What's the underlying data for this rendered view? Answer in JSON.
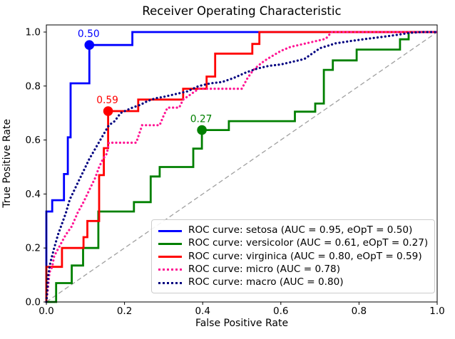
{
  "title": "Receiver Operating Characteristic",
  "chart_data": {
    "type": "line",
    "subtype": "roc-step-curves",
    "title": "Receiver Operating Characteristic",
    "xlabel": "False Positive Rate",
    "ylabel": "True Positive Rate",
    "xlim": [
      0.0,
      1.0
    ],
    "ylim": [
      0.0,
      1.03
    ],
    "grid": false,
    "legend_position": "lower right",
    "xticks": [
      0.0,
      0.2,
      0.4,
      0.6,
      0.8,
      1.0
    ],
    "xtick_labels": [
      "0.0",
      "0.2",
      "0.4",
      "0.6",
      "0.8",
      "1.0"
    ],
    "yticks": [
      0.0,
      0.2,
      0.4,
      0.6,
      0.8,
      1.0
    ],
    "ytick_labels": [
      "0.0",
      "0.2",
      "0.4",
      "0.6",
      "0.8",
      "1.0"
    ],
    "diagonal": {
      "name": "chance-line",
      "color": "#a0a0a0",
      "style": "dashed",
      "points": [
        [
          0,
          0
        ],
        [
          1,
          1
        ]
      ]
    },
    "series": [
      {
        "name": "ROC curve: setosa (AUC = 0.95, eOpT = 0.50)",
        "class": "setosa",
        "auc": 0.95,
        "eopt": 0.5,
        "color": "#0000ff",
        "style": "solid",
        "points": [
          [
            0,
            0
          ],
          [
            0,
            0.335
          ],
          [
            0.015,
            0.335
          ],
          [
            0.015,
            0.377
          ],
          [
            0.045,
            0.377
          ],
          [
            0.045,
            0.474
          ],
          [
            0.055,
            0.474
          ],
          [
            0.055,
            0.61
          ],
          [
            0.062,
            0.61
          ],
          [
            0.062,
            0.81
          ],
          [
            0.11,
            0.81
          ],
          [
            0.11,
            0.952
          ],
          [
            0.22,
            0.952
          ],
          [
            0.22,
            1.0
          ],
          [
            1,
            1.0
          ]
        ]
      },
      {
        "name": "ROC curve: versicolor (AUC = 0.61, eOpT = 0.27)",
        "class": "versicolor",
        "auc": 0.61,
        "eopt": 0.27,
        "color": "#008000",
        "style": "solid",
        "points": [
          [
            0,
            0
          ],
          [
            0.025,
            0
          ],
          [
            0.025,
            0.07
          ],
          [
            0.065,
            0.07
          ],
          [
            0.065,
            0.135
          ],
          [
            0.094,
            0.135
          ],
          [
            0.094,
            0.2
          ],
          [
            0.133,
            0.2
          ],
          [
            0.133,
            0.335
          ],
          [
            0.224,
            0.335
          ],
          [
            0.224,
            0.37
          ],
          [
            0.267,
            0.37
          ],
          [
            0.267,
            0.465
          ],
          [
            0.29,
            0.465
          ],
          [
            0.29,
            0.5
          ],
          [
            0.376,
            0.5
          ],
          [
            0.376,
            0.568
          ],
          [
            0.398,
            0.568
          ],
          [
            0.398,
            0.637
          ],
          [
            0.467,
            0.637
          ],
          [
            0.467,
            0.67
          ],
          [
            0.636,
            0.67
          ],
          [
            0.636,
            0.705
          ],
          [
            0.688,
            0.705
          ],
          [
            0.688,
            0.735
          ],
          [
            0.71,
            0.735
          ],
          [
            0.71,
            0.86
          ],
          [
            0.733,
            0.86
          ],
          [
            0.733,
            0.895
          ],
          [
            0.794,
            0.895
          ],
          [
            0.794,
            0.935
          ],
          [
            0.905,
            0.935
          ],
          [
            0.905,
            0.973
          ],
          [
            0.927,
            0.973
          ],
          [
            0.927,
            1.0
          ],
          [
            1,
            1.0
          ]
        ]
      },
      {
        "name": "ROC curve: virginica (AUC = 0.80, eOpT = 0.59)",
        "class": "virginica",
        "auc": 0.8,
        "eopt": 0.59,
        "color": "#ff0000",
        "style": "solid",
        "points": [
          [
            0,
            0
          ],
          [
            0,
            0.13
          ],
          [
            0.04,
            0.13
          ],
          [
            0.04,
            0.2
          ],
          [
            0.095,
            0.2
          ],
          [
            0.095,
            0.24
          ],
          [
            0.105,
            0.24
          ],
          [
            0.105,
            0.3
          ],
          [
            0.135,
            0.3
          ],
          [
            0.135,
            0.47
          ],
          [
            0.147,
            0.47
          ],
          [
            0.147,
            0.57
          ],
          [
            0.158,
            0.57
          ],
          [
            0.158,
            0.707
          ],
          [
            0.235,
            0.707
          ],
          [
            0.235,
            0.75
          ],
          [
            0.35,
            0.75
          ],
          [
            0.35,
            0.79
          ],
          [
            0.41,
            0.79
          ],
          [
            0.41,
            0.835
          ],
          [
            0.432,
            0.835
          ],
          [
            0.432,
            0.92
          ],
          [
            0.527,
            0.92
          ],
          [
            0.527,
            0.956
          ],
          [
            0.545,
            0.956
          ],
          [
            0.545,
            1.0
          ],
          [
            1,
            1.0
          ]
        ]
      },
      {
        "name": "ROC curve: micro (AUC = 0.78)",
        "class": "micro",
        "auc": 0.78,
        "color": "#ff1493",
        "style": "dotted",
        "points": [
          [
            0,
            0
          ],
          [
            0.004,
            0.05
          ],
          [
            0.008,
            0.11
          ],
          [
            0.015,
            0.13
          ],
          [
            0.02,
            0.17
          ],
          [
            0.035,
            0.21
          ],
          [
            0.05,
            0.25
          ],
          [
            0.065,
            0.28
          ],
          [
            0.08,
            0.33
          ],
          [
            0.095,
            0.37
          ],
          [
            0.105,
            0.4
          ],
          [
            0.115,
            0.43
          ],
          [
            0.125,
            0.46
          ],
          [
            0.135,
            0.5
          ],
          [
            0.145,
            0.53
          ],
          [
            0.155,
            0.55
          ],
          [
            0.16,
            0.59
          ],
          [
            0.23,
            0.59
          ],
          [
            0.245,
            0.655
          ],
          [
            0.29,
            0.655
          ],
          [
            0.3,
            0.69
          ],
          [
            0.31,
            0.72
          ],
          [
            0.34,
            0.72
          ],
          [
            0.35,
            0.75
          ],
          [
            0.37,
            0.77
          ],
          [
            0.39,
            0.79
          ],
          [
            0.5,
            0.79
          ],
          [
            0.515,
            0.83
          ],
          [
            0.53,
            0.86
          ],
          [
            0.55,
            0.885
          ],
          [
            0.565,
            0.9
          ],
          [
            0.6,
            0.93
          ],
          [
            0.625,
            0.945
          ],
          [
            0.655,
            0.955
          ],
          [
            0.685,
            0.965
          ],
          [
            0.715,
            0.975
          ],
          [
            0.73,
            1.0
          ],
          [
            1,
            1.0
          ]
        ]
      },
      {
        "name": "ROC curve: macro (AUC = 0.80)",
        "class": "macro",
        "auc": 0.8,
        "color": "#000080",
        "style": "dotted",
        "points": [
          [
            0,
            0
          ],
          [
            0.005,
            0.1
          ],
          [
            0.01,
            0.145
          ],
          [
            0.02,
            0.2
          ],
          [
            0.03,
            0.25
          ],
          [
            0.04,
            0.29
          ],
          [
            0.05,
            0.33
          ],
          [
            0.06,
            0.38
          ],
          [
            0.07,
            0.41
          ],
          [
            0.08,
            0.44
          ],
          [
            0.09,
            0.47
          ],
          [
            0.1,
            0.5
          ],
          [
            0.11,
            0.53
          ],
          [
            0.12,
            0.555
          ],
          [
            0.13,
            0.58
          ],
          [
            0.14,
            0.605
          ],
          [
            0.15,
            0.63
          ],
          [
            0.16,
            0.655
          ],
          [
            0.175,
            0.67
          ],
          [
            0.19,
            0.7
          ],
          [
            0.205,
            0.71
          ],
          [
            0.22,
            0.72
          ],
          [
            0.24,
            0.73
          ],
          [
            0.26,
            0.745
          ],
          [
            0.28,
            0.755
          ],
          [
            0.3,
            0.76
          ],
          [
            0.33,
            0.77
          ],
          [
            0.36,
            0.78
          ],
          [
            0.39,
            0.8
          ],
          [
            0.42,
            0.81
          ],
          [
            0.45,
            0.815
          ],
          [
            0.48,
            0.83
          ],
          [
            0.51,
            0.85
          ],
          [
            0.54,
            0.865
          ],
          [
            0.57,
            0.875
          ],
          [
            0.6,
            0.88
          ],
          [
            0.63,
            0.89
          ],
          [
            0.66,
            0.9
          ],
          [
            0.7,
            0.94
          ],
          [
            0.74,
            0.958
          ],
          [
            0.78,
            0.967
          ],
          [
            0.82,
            0.975
          ],
          [
            0.86,
            0.982
          ],
          [
            0.9,
            0.99
          ],
          [
            0.93,
            0.997
          ],
          [
            0.96,
            1.0
          ],
          [
            1,
            1.0
          ]
        ]
      }
    ],
    "markers": [
      {
        "label": "0.50",
        "x": 0.11,
        "y": 0.952,
        "color": "#0000ff",
        "series": "setosa"
      },
      {
        "label": "0.59",
        "x": 0.158,
        "y": 0.707,
        "color": "#ff0000",
        "series": "virginica"
      },
      {
        "label": "0.27",
        "x": 0.398,
        "y": 0.637,
        "color": "#008000",
        "series": "versicolor"
      }
    ]
  }
}
